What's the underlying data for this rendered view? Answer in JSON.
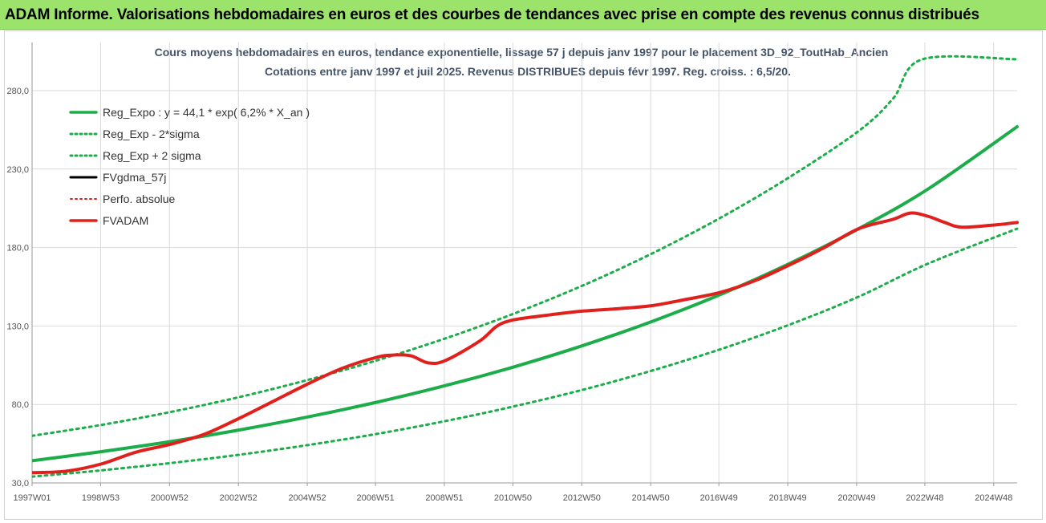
{
  "banner": {
    "title": "ADAM Informe. Valorisations hebdomadaires en euros et des courbes de tendances avec prise en compte des revenus connus distribués"
  },
  "chart_data": {
    "type": "line",
    "title": "Cours moyens hebdomadaires en euros, tendance exponentielle, lissage 57 j depuis janv 1997 pour le placement 3D_92_ToutHab_Ancien",
    "subtitle": "Cotations entre janv 1997 et juil 2025. Revenus DISTRIBUES depuis févr 1997. Reg. croiss. : 6,5/20.",
    "xlabel": "",
    "ylabel": "",
    "ylim": [
      30,
      280
    ],
    "xlim": [
      1997.0,
      2025.6
    ],
    "y_ticks": [
      "30,0",
      "80,0",
      "130,0",
      "180,0",
      "230,0",
      "280,0"
    ],
    "x_ticks": [
      {
        "label": "1997W01",
        "x": 1997.0
      },
      {
        "label": "1998W53",
        "x": 1998.99
      },
      {
        "label": "2000W52",
        "x": 2000.99
      },
      {
        "label": "2002W52",
        "x": 2002.99
      },
      {
        "label": "2004W52",
        "x": 2004.99
      },
      {
        "label": "2006W51",
        "x": 2006.97
      },
      {
        "label": "2008W51",
        "x": 2008.97
      },
      {
        "label": "2010W50",
        "x": 2010.96
      },
      {
        "label": "2012W50",
        "x": 2012.96
      },
      {
        "label": "2014W50",
        "x": 2014.96
      },
      {
        "label": "2016W49",
        "x": 2016.94
      },
      {
        "label": "2018W49",
        "x": 2018.94
      },
      {
        "label": "2020W49",
        "x": 2020.94
      },
      {
        "label": "2022W48",
        "x": 2022.92
      },
      {
        "label": "2024W48",
        "x": 2024.92
      }
    ],
    "grid": true,
    "legend_position": "top-left",
    "series": [
      {
        "name": "Reg_Expo : y = 44,1 * exp( 6,2% *  X_an )",
        "color": "#1CAD4A",
        "style": "solid",
        "width": 4,
        "x": [
          1997,
          1999,
          2001,
          2003,
          2005,
          2007,
          2009,
          2011,
          2013,
          2015,
          2017,
          2019,
          2021,
          2023,
          2025.6
        ],
        "values": [
          44.1,
          49.9,
          56.3,
          63.7,
          72.0,
          81.4,
          92.0,
          104.0,
          117.6,
          132.9,
          150.2,
          169.9,
          192.0,
          217.1,
          257.0
        ]
      },
      {
        "name": "Reg_Exp - 2*sigma",
        "color": "#1CAD4A",
        "style": "dotted",
        "width": 3,
        "x": [
          1997,
          1999,
          2001,
          2003,
          2005,
          2007,
          2009,
          2011,
          2013,
          2015,
          2017,
          2019,
          2021,
          2023,
          2025.6
        ],
        "values": [
          34.0,
          38.0,
          42.6,
          47.9,
          54.1,
          61.2,
          69.4,
          78.8,
          89.4,
          101.6,
          115.3,
          130.9,
          148.7,
          169.6,
          192.0
        ]
      },
      {
        "name": "Reg_Exp + 2 sigma",
        "color": "#1CAD4A",
        "style": "dotted",
        "width": 3,
        "x": [
          1997,
          1999,
          2001,
          2003,
          2005,
          2007,
          2009,
          2011,
          2013,
          2015,
          2017,
          2019,
          2021,
          2022,
          2022.85,
          2025.6
        ],
        "values": [
          60.0,
          66.9,
          75.1,
          84.6,
          95.6,
          108.0,
          122.1,
          138.0,
          155.9,
          176.2,
          199.1,
          225.0,
          254.3,
          275.0,
          300.0,
          300.0
        ]
      },
      {
        "name": "FVgdma_57j",
        "color": "#000000",
        "style": "solid",
        "width": 3,
        "x": [],
        "values": []
      },
      {
        "name": "Perfo. absolue",
        "color": "#E0201C",
        "style": "dotted",
        "width": 2,
        "x": [],
        "values": []
      },
      {
        "name": "FVADAM",
        "color": "#E0201C",
        "style": "solid",
        "width": 4,
        "x": [
          1997,
          1998,
          1999,
          2000,
          2001,
          2002,
          2003,
          2004,
          2005,
          2006,
          2007,
          2007.5,
          2008,
          2008.5,
          2009,
          2010,
          2010.5,
          2011,
          2012,
          2013,
          2014,
          2015,
          2016,
          2017,
          2018,
          2019,
          2020,
          2021,
          2022,
          2022.5,
          2023,
          2023.5,
          2024,
          2025,
          2025.6
        ],
        "values": [
          36.5,
          37.5,
          42.0,
          49.5,
          54.5,
          61.0,
          71.0,
          82.0,
          93.0,
          103.0,
          110.0,
          111.5,
          111.0,
          106.5,
          108.0,
          120.5,
          130.0,
          134.0,
          137.0,
          139.5,
          141.0,
          143.0,
          147.0,
          151.5,
          159.0,
          169.0,
          180.0,
          192.0,
          198.0,
          202.0,
          200.0,
          196.0,
          193.0,
          194.5,
          196.0
        ]
      }
    ]
  }
}
